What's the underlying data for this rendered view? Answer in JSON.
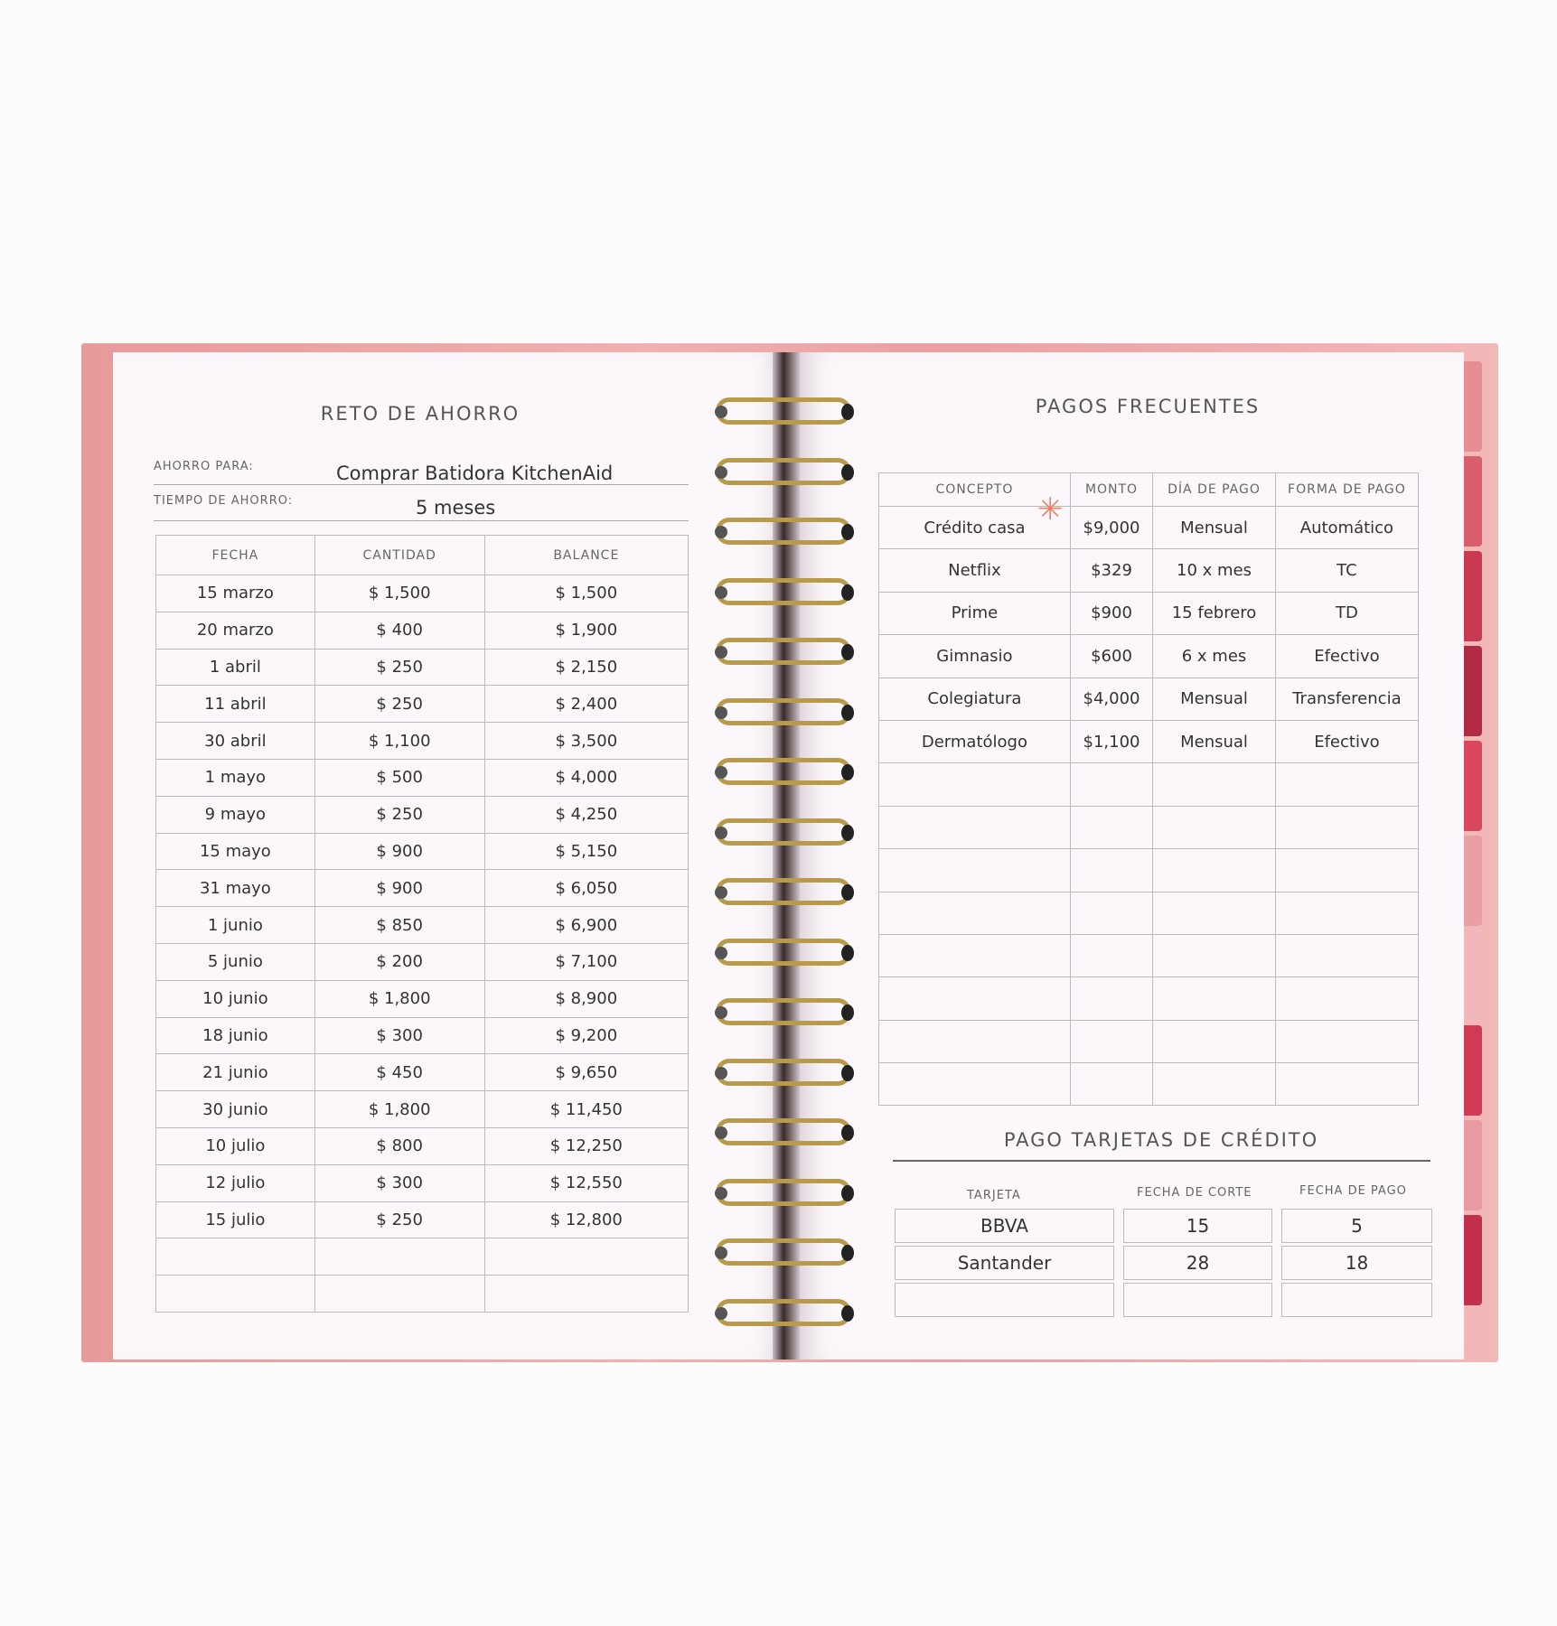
{
  "left_page": {
    "title": "RETO DE AHORRO",
    "ahorro_para_label": "AHORRO PARA:",
    "ahorro_para_value": "Comprar Batidora KitchenAid",
    "tiempo_label": "TIEMPO DE AHORRO:",
    "tiempo_value": "5 meses",
    "headers": [
      "FECHA",
      "CANTIDAD",
      "BALANCE"
    ],
    "rows": [
      [
        "15 marzo",
        "$ 1,500",
        "$ 1,500"
      ],
      [
        "20 marzo",
        "$ 400",
        "$ 1,900"
      ],
      [
        "1 abril",
        "$ 250",
        "$ 2,150"
      ],
      [
        "11 abril",
        "$ 250",
        "$ 2,400"
      ],
      [
        "30 abril",
        "$ 1,100",
        "$ 3,500"
      ],
      [
        "1 mayo",
        "$ 500",
        "$ 4,000"
      ],
      [
        "9 mayo",
        "$ 250",
        "$ 4,250"
      ],
      [
        "15 mayo",
        "$ 900",
        "$ 5,150"
      ],
      [
        "31 mayo",
        "$ 900",
        "$ 6,050"
      ],
      [
        "1 junio",
        "$ 850",
        "$ 6,900"
      ],
      [
        "5 junio",
        "$ 200",
        "$ 7,100"
      ],
      [
        "10 junio",
        "$ 1,800",
        "$ 8,900"
      ],
      [
        "18 junio",
        "$ 300",
        "$ 9,200"
      ],
      [
        "21 junio",
        "$ 450",
        "$ 9,650"
      ],
      [
        "30 junio",
        "$ 1,800",
        "$ 11,450"
      ],
      [
        "10 julio",
        "$ 800",
        "$ 12,250"
      ],
      [
        "12 julio",
        "$ 300",
        "$ 12,550"
      ],
      [
        "15 julio",
        "$ 250",
        "$ 12,800"
      ],
      [
        "",
        "",
        ""
      ],
      [
        "",
        "",
        ""
      ]
    ]
  },
  "right_page": {
    "title": "PAGOS FRECUENTES",
    "headers": [
      "CONCEPTO",
      "MONTO",
      "DÍA DE PAGO",
      "FORMA DE PAGO"
    ],
    "rows": [
      [
        "Crédito casa",
        "$9,000",
        "Mensual",
        "Automático"
      ],
      [
        "Netflix",
        "$329",
        "10 x mes",
        "TC"
      ],
      [
        "Prime",
        "$900",
        "15 febrero",
        "TD"
      ],
      [
        "Gimnasio",
        "$600",
        "6 x mes",
        "Efectivo"
      ],
      [
        "Colegiatura",
        "$4,000",
        "Mensual",
        "Transferencia"
      ],
      [
        "Dermatólogo",
        "$1,100",
        "Mensual",
        "Efectivo"
      ],
      [
        "",
        "",
        "",
        ""
      ],
      [
        "",
        "",
        "",
        ""
      ],
      [
        "",
        "",
        "",
        ""
      ],
      [
        "",
        "",
        "",
        ""
      ],
      [
        "",
        "",
        "",
        ""
      ],
      [
        "",
        "",
        "",
        ""
      ],
      [
        "",
        "",
        "",
        ""
      ],
      [
        "",
        "",
        "",
        ""
      ]
    ],
    "cards": {
      "title": "PAGO TARJETAS DE CRÉDITO",
      "headers": [
        "TARJETA",
        "FECHA DE CORTE",
        "FECHA DE PAGO"
      ],
      "rows": [
        [
          "BBVA",
          "15",
          "5"
        ],
        [
          "Santander",
          "28",
          "18"
        ],
        [
          "",
          "",
          ""
        ]
      ]
    }
  },
  "colors": {
    "cover": "#eca5a5",
    "rings": "#b99a4a",
    "tabs": [
      "#e58f95",
      "#d95f6d",
      "#c93a52",
      "#b02a45",
      "#d8475c",
      "#e8a0a6",
      "#f0b8bb",
      "#cf3b55",
      "#e79aa0",
      "#c2304c"
    ],
    "star": "#e8836a"
  }
}
